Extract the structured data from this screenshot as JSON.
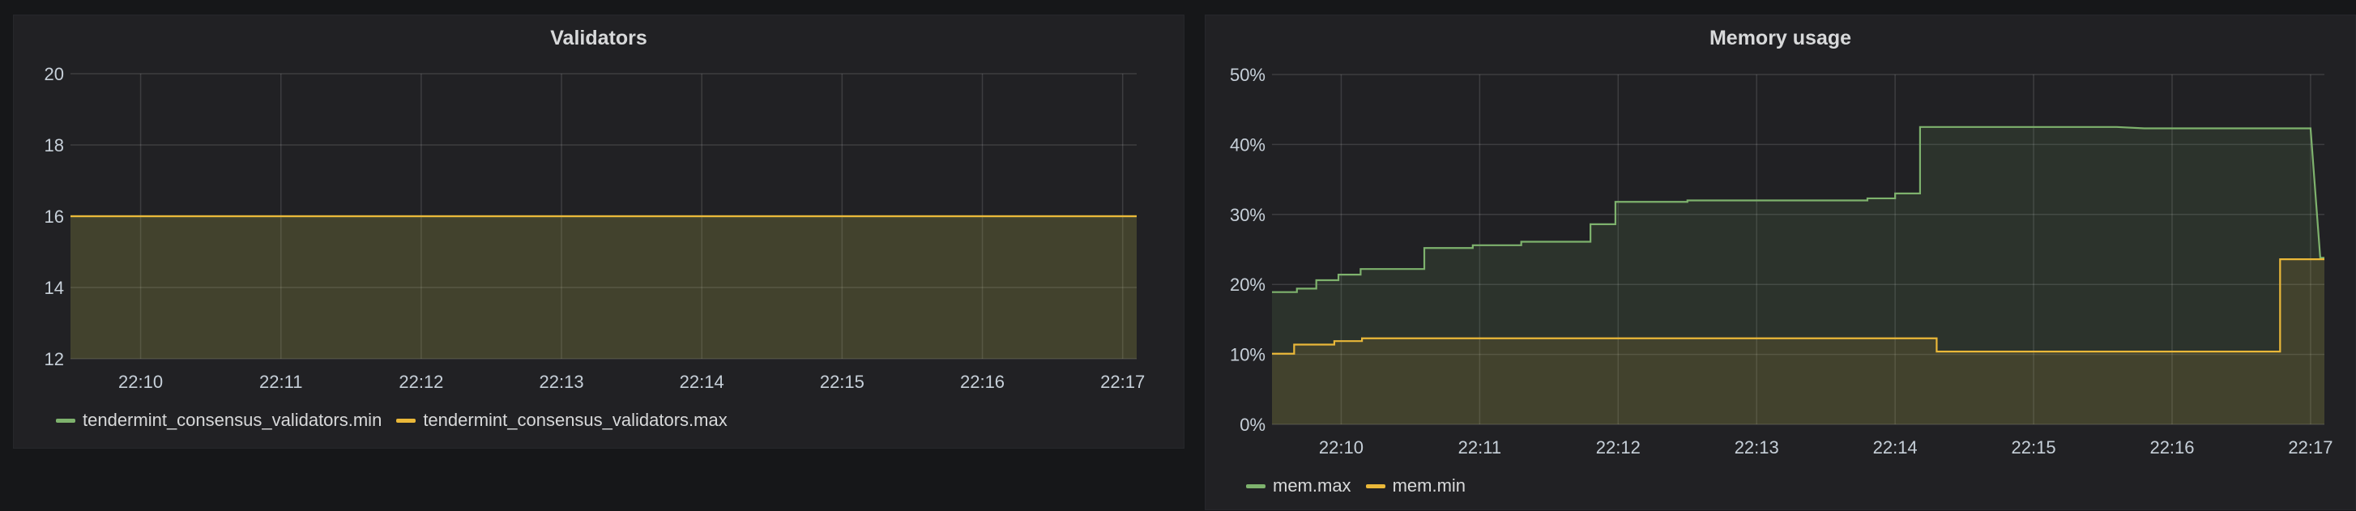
{
  "panels": [
    {
      "title": "Validators"
    },
    {
      "title": "Memory usage"
    }
  ],
  "colors": {
    "green": "#7eb26d",
    "yellow": "#eab839"
  },
  "chart_data": [
    {
      "type": "line",
      "title": "Validators",
      "xlabel": "",
      "ylabel": "",
      "x_ticks": [
        "22:10",
        "22:11",
        "22:12",
        "22:13",
        "22:14",
        "22:15",
        "22:16",
        "22:17"
      ],
      "y_ticks": [
        "20",
        "18",
        "16",
        "14",
        "12"
      ],
      "xlim": [
        9.5,
        17.1
      ],
      "ylim": [
        12,
        20
      ],
      "grid": true,
      "legend_placement": "bottom-left",
      "series": [
        {
          "name": "tendermint_consensus_validators.min",
          "color": "#7eb26d",
          "fill": true,
          "points": [
            [
              9.5,
              16
            ],
            [
              17.1,
              16
            ]
          ]
        },
        {
          "name": "tendermint_consensus_validators.max",
          "color": "#eab839",
          "fill": true,
          "points": [
            [
              9.5,
              16
            ],
            [
              17.1,
              16
            ]
          ]
        }
      ]
    },
    {
      "type": "line",
      "title": "Memory usage",
      "xlabel": "",
      "ylabel": "",
      "x_ticks": [
        "22:10",
        "22:11",
        "22:12",
        "22:13",
        "22:14",
        "22:15",
        "22:16",
        "22:17"
      ],
      "y_ticks": [
        "50%",
        "40%",
        "30%",
        "20%",
        "10%",
        "0%"
      ],
      "xlim": [
        9.5,
        17.1
      ],
      "ylim": [
        0,
        50
      ],
      "grid": true,
      "legend_placement": "bottom-left",
      "series": [
        {
          "name": "mem.max",
          "color": "#7eb26d",
          "fill": true,
          "points": [
            [
              9.5,
              18.9
            ],
            [
              9.68,
              18.9
            ],
            [
              9.68,
              19.4
            ],
            [
              9.82,
              19.4
            ],
            [
              9.82,
              20.6
            ],
            [
              9.98,
              20.6
            ],
            [
              9.98,
              21.4
            ],
            [
              10.14,
              21.4
            ],
            [
              10.14,
              22.2
            ],
            [
              10.6,
              22.2
            ],
            [
              10.6,
              25.2
            ],
            [
              10.95,
              25.2
            ],
            [
              10.95,
              25.6
            ],
            [
              11.3,
              25.6
            ],
            [
              11.3,
              26.1
            ],
            [
              11.8,
              26.1
            ],
            [
              11.8,
              28.6
            ],
            [
              11.98,
              28.6
            ],
            [
              11.98,
              31.8
            ],
            [
              12.5,
              31.8
            ],
            [
              12.5,
              32.0
            ],
            [
              13.8,
              32.0
            ],
            [
              13.8,
              32.3
            ],
            [
              14.0,
              32.3
            ],
            [
              14.0,
              33.0
            ],
            [
              14.18,
              33.0
            ],
            [
              14.18,
              42.5
            ],
            [
              15.6,
              42.5
            ],
            [
              15.8,
              42.3
            ],
            [
              17.0,
              42.3
            ],
            [
              17.07,
              23.8
            ],
            [
              17.1,
              23.8
            ]
          ]
        },
        {
          "name": "mem.min",
          "color": "#eab839",
          "fill": true,
          "points": [
            [
              9.5,
              10.1
            ],
            [
              9.66,
              10.1
            ],
            [
              9.66,
              11.4
            ],
            [
              9.95,
              11.4
            ],
            [
              9.95,
              11.9
            ],
            [
              10.15,
              11.9
            ],
            [
              10.15,
              12.3
            ],
            [
              12.0,
              12.3
            ],
            [
              14.0,
              12.3
            ],
            [
              14.3,
              12.3
            ],
            [
              14.3,
              10.4
            ],
            [
              16.78,
              10.4
            ],
            [
              16.78,
              23.6
            ],
            [
              17.1,
              23.6
            ]
          ]
        }
      ]
    }
  ]
}
